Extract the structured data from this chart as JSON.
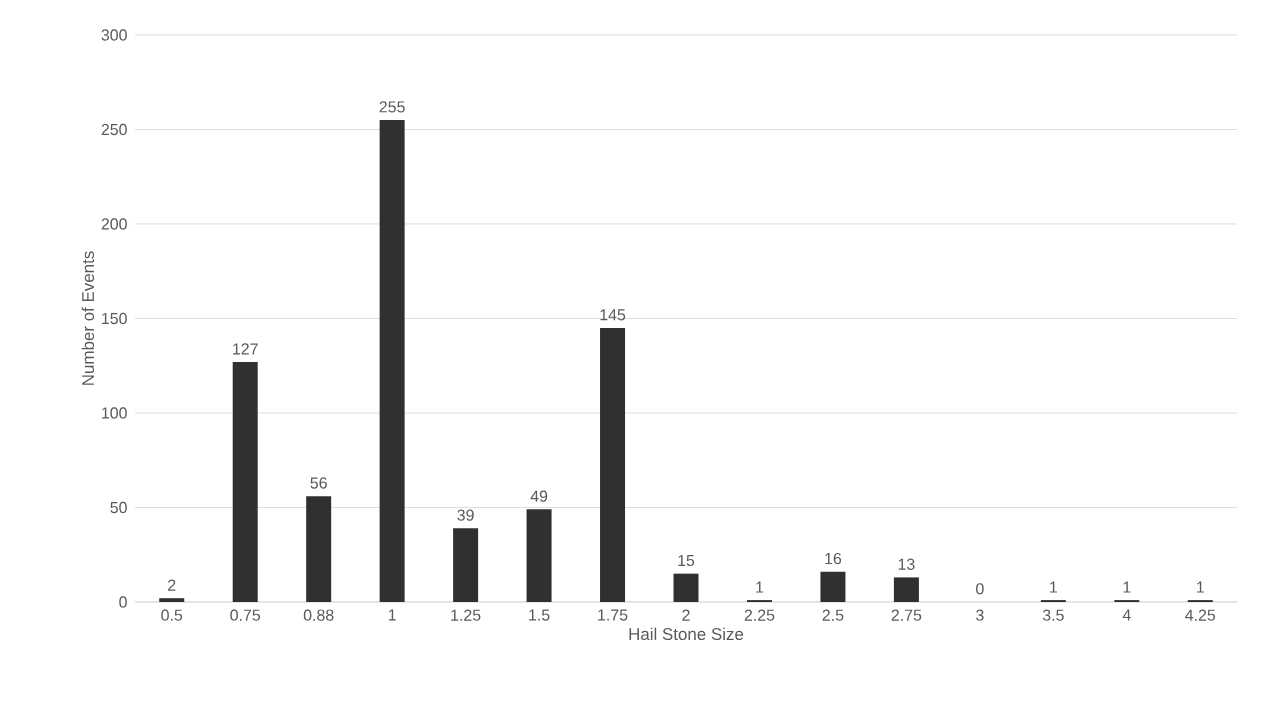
{
  "chart_data": {
    "type": "bar",
    "xlabel": "Hail Stone Size",
    "ylabel": "Number of Events",
    "categories": [
      "0.5",
      "0.75",
      "0.88",
      "1",
      "1.25",
      "1.5",
      "1.75",
      "2",
      "2.25",
      "2.5",
      "2.75",
      "3",
      "3.5",
      "4",
      "4.25"
    ],
    "values": [
      2,
      127,
      56,
      255,
      39,
      49,
      145,
      15,
      1,
      16,
      13,
      0,
      1,
      1,
      1
    ],
    "color": "#303030",
    "ylim": [
      0,
      300
    ],
    "yticks": [
      0,
      50,
      100,
      150,
      200,
      250,
      300
    ],
    "grid": "y",
    "data_labels": true
  }
}
